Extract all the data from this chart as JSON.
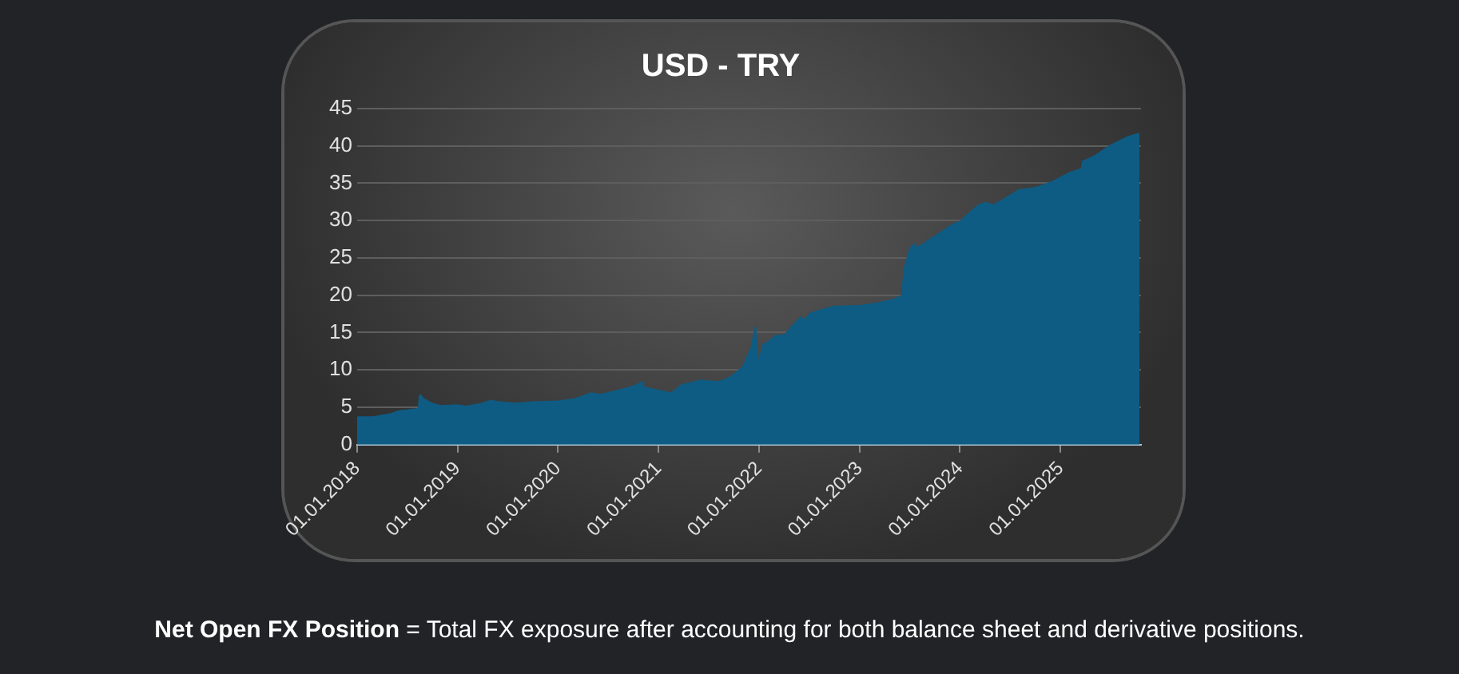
{
  "chart_data": {
    "type": "area",
    "title": "USD - TRY",
    "x": [
      "2018-01-01",
      "2018-03-01",
      "2018-05-01",
      "2018-06-01",
      "2018-07-01",
      "2018-08-10",
      "2018-08-13",
      "2018-08-20",
      "2018-09-01",
      "2018-10-01",
      "2018-11-01",
      "2019-01-01",
      "2019-02-01",
      "2019-04-01",
      "2019-05-01",
      "2019-06-01",
      "2019-08-01",
      "2019-10-01",
      "2020-01-01",
      "2020-03-01",
      "2020-05-01",
      "2020-06-01",
      "2020-08-01",
      "2020-10-01",
      "2020-11-05",
      "2020-11-10",
      "2020-12-01",
      "2021-02-15",
      "2021-03-25",
      "2021-05-01",
      "2021-06-01",
      "2021-08-01",
      "2021-09-01",
      "2021-10-01",
      "2021-11-01",
      "2021-12-01",
      "2021-12-20",
      "2021-12-30",
      "2022-01-14",
      "2022-02-01",
      "2022-03-01",
      "2022-04-01",
      "2022-05-01",
      "2022-06-01",
      "2022-06-15",
      "2022-07-01",
      "2022-08-01",
      "2022-10-01",
      "2023-01-01",
      "2023-03-01",
      "2023-05-01",
      "2023-06-01",
      "2023-06-10",
      "2023-07-01",
      "2023-07-20",
      "2023-08-01",
      "2023-09-01",
      "2023-10-01",
      "2023-12-01",
      "2024-01-01",
      "2024-03-01",
      "2024-04-01",
      "2024-05-01",
      "2024-06-01",
      "2024-08-01",
      "2024-10-01",
      "2024-12-01",
      "2025-02-01",
      "2025-03-15",
      "2025-03-20",
      "2025-05-01",
      "2025-07-01",
      "2025-09-01",
      "2025-10-15"
    ],
    "series": [
      {
        "color": "#0e5c84",
        "values": [
          3.8,
          3.8,
          4.2,
          4.6,
          4.7,
          4.9,
          6.5,
          6.8,
          6.2,
          5.6,
          5.3,
          5.4,
          5.2,
          5.6,
          6.0,
          5.8,
          5.6,
          5.8,
          5.9,
          6.2,
          7.0,
          6.8,
          7.3,
          7.9,
          8.5,
          7.8,
          7.6,
          7.0,
          8.1,
          8.4,
          8.7,
          8.5,
          8.8,
          9.5,
          10.5,
          13,
          16.5,
          11.5,
          13.5,
          13.8,
          14.7,
          14.7,
          16,
          17.2,
          16.8,
          17.6,
          18.0,
          18.6,
          18.7,
          19.0,
          19.5,
          20,
          23.5,
          26.3,
          27,
          26.5,
          27.3,
          28.0,
          29.5,
          30,
          32,
          32.5,
          32.2,
          32.8,
          34.2,
          34.5,
          35.3,
          36.5,
          37,
          38,
          38.7,
          40.2,
          41.3,
          41.8
        ]
      }
    ],
    "xlim": [
      "2018-01-01",
      "2025-10-20"
    ],
    "xticks": [
      {
        "value": "2018-01-01",
        "label": "01.01.2018"
      },
      {
        "value": "2019-01-01",
        "label": "01.01.2019"
      },
      {
        "value": "2020-01-01",
        "label": "01.01.2020"
      },
      {
        "value": "2021-01-01",
        "label": "01.01.2021"
      },
      {
        "value": "2022-01-01",
        "label": "01.01.2022"
      },
      {
        "value": "2023-01-01",
        "label": "01.01.2023"
      },
      {
        "value": "2024-01-01",
        "label": "01.01.2024"
      },
      {
        "value": "2025-01-01",
        "label": "01.01.2025"
      }
    ],
    "ylim": [
      0,
      45
    ],
    "yticks": [
      0,
      5,
      10,
      15,
      20,
      25,
      30,
      35,
      40,
      45
    ],
    "grid": "y",
    "legend": false,
    "marker": "none",
    "annotations": [
      "Net Open FX Position",
      "= Total FX exposure after accounting for both balance sheet and derivative positions."
    ]
  }
}
